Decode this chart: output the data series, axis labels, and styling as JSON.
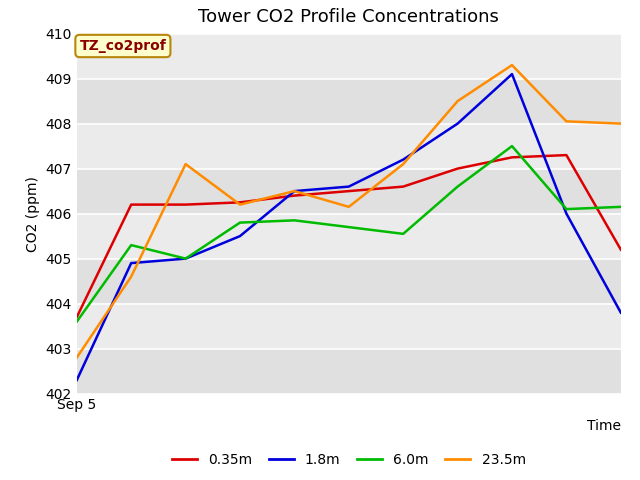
{
  "title": "Tower CO2 Profile Concentrations",
  "xlabel": "Time",
  "ylabel": "CO2 (ppm)",
  "ylim": [
    402.0,
    410.0
  ],
  "yticks": [
    402.0,
    403.0,
    404.0,
    405.0,
    406.0,
    407.0,
    408.0,
    409.0,
    410.0
  ],
  "x_label_start": "Sep 5",
  "annotation_label": "TZ_co2prof",
  "annotation_color": "#8B0000",
  "annotation_bg": "#FFFFCC",
  "annotation_border": "#B8860B",
  "series": {
    "0.35m": {
      "color": "#DD0000",
      "linewidth": 1.8,
      "y": [
        403.7,
        406.2,
        406.2,
        406.25,
        406.4,
        406.5,
        406.6,
        407.0,
        407.25,
        407.3,
        405.2
      ]
    },
    "1.8m": {
      "color": "#0000DD",
      "linewidth": 1.8,
      "y": [
        402.3,
        404.9,
        405.0,
        405.5,
        406.5,
        406.6,
        407.2,
        408.0,
        409.1,
        406.0,
        403.8
      ]
    },
    "6.0m": {
      "color": "#00BB00",
      "linewidth": 1.8,
      "y": [
        403.6,
        405.3,
        405.0,
        405.8,
        405.85,
        405.7,
        405.55,
        406.6,
        407.5,
        406.1,
        406.15
      ]
    },
    "23.5m": {
      "color": "#FF8C00",
      "linewidth": 1.8,
      "y": [
        402.8,
        404.6,
        407.1,
        406.2,
        406.5,
        406.15,
        407.1,
        408.5,
        409.3,
        408.05,
        408.0
      ]
    }
  },
  "legend_order": [
    "0.35m",
    "1.8m",
    "6.0m",
    "23.5m"
  ],
  "bg_color": "#E8E8E8",
  "band_colors": [
    "#E0E0E0",
    "#EBEBEB"
  ],
  "grid_color": "#FFFFFF",
  "fig_bg": "#FFFFFF",
  "title_fontsize": 13,
  "axis_label_fontsize": 10,
  "tick_fontsize": 10,
  "legend_fontsize": 10
}
